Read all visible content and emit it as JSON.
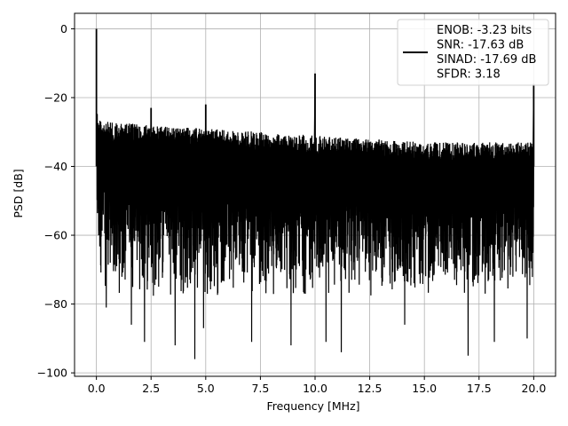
{
  "chart_data": {
    "type": "line",
    "xlabel": "Frequency [MHz]",
    "ylabel": "PSD [dB]",
    "xlim": [
      -1.0,
      21.0
    ],
    "ylim": [
      -101.0,
      4.5
    ],
    "xticks": [
      0.0,
      2.5,
      5.0,
      7.5,
      10.0,
      12.5,
      15.0,
      17.5,
      20.0
    ],
    "xtick_labels": [
      "0.0",
      "2.5",
      "5.0",
      "7.5",
      "10.0",
      "12.5",
      "15.0",
      "17.5",
      "20.0"
    ],
    "yticks": [
      0,
      -20,
      -40,
      -60,
      -80,
      -100
    ],
    "ytick_labels": [
      "0",
      "−20",
      "−40",
      "−60",
      "−80",
      "−100"
    ],
    "grid": true,
    "legend_position": "top-right",
    "series": [
      {
        "name": "ENOB: -3.23 bits\nSNR: -17.63 dB\nSINAD: -17.69 dB\nSFDR: 3.18",
        "color": "#000000",
        "noise_floor_envelope": {
          "x": [
            0.0,
            0.1,
            0.5,
            2.5,
            5.0,
            7.5,
            10.0,
            12.5,
            15.0,
            17.5,
            20.0
          ],
          "upper": [
            -22,
            -26,
            -27,
            -28,
            -29,
            -30,
            -31,
            -32,
            -33,
            -33,
            -33
          ],
          "lower": [
            -60,
            -70,
            -78,
            -78,
            -78,
            -78,
            -78,
            -78,
            -78,
            -78,
            -78
          ]
        },
        "peaks": [
          {
            "x": 0.0,
            "y": 0
          },
          {
            "x": 2.5,
            "y": -23
          },
          {
            "x": 5.0,
            "y": -22
          },
          {
            "x": 10.0,
            "y": -13
          },
          {
            "x": 20.0,
            "y": -16
          }
        ],
        "dips": [
          {
            "x": 0.45,
            "y": -81
          },
          {
            "x": 1.6,
            "y": -86
          },
          {
            "x": 2.2,
            "y": -91
          },
          {
            "x": 3.6,
            "y": -92
          },
          {
            "x": 4.5,
            "y": -96
          },
          {
            "x": 4.9,
            "y": -87
          },
          {
            "x": 7.1,
            "y": -91
          },
          {
            "x": 8.9,
            "y": -92
          },
          {
            "x": 10.5,
            "y": -91
          },
          {
            "x": 11.2,
            "y": -94
          },
          {
            "x": 14.1,
            "y": -86
          },
          {
            "x": 17.0,
            "y": -95
          },
          {
            "x": 18.2,
            "y": -91
          },
          {
            "x": 19.7,
            "y": -90
          }
        ]
      }
    ]
  }
}
